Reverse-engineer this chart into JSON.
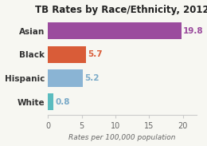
{
  "title": "TB Rates by Race/Ethnicity, 2012",
  "categories": [
    "Asian",
    "Black",
    "Hispanic",
    "White"
  ],
  "values": [
    19.8,
    5.7,
    5.2,
    0.8
  ],
  "bar_colors": [
    "#9b4c9e",
    "#d95c38",
    "#8ab4d4",
    "#5bbcbf"
  ],
  "label_colors": [
    "#9b4c9e",
    "#d95c38",
    "#7aaac8",
    "#7aaac8"
  ],
  "xlabel": "Rates per 100,000 population",
  "xlim": [
    0,
    22
  ],
  "xticks": [
    0,
    5,
    10,
    15,
    20
  ],
  "background_color": "#f7f7f2",
  "title_fontsize": 8.5,
  "ylabel_fontsize": 7.5,
  "xlabel_fontsize": 6.5,
  "value_fontsize": 7.5,
  "tick_fontsize": 7,
  "bar_height": 0.72
}
